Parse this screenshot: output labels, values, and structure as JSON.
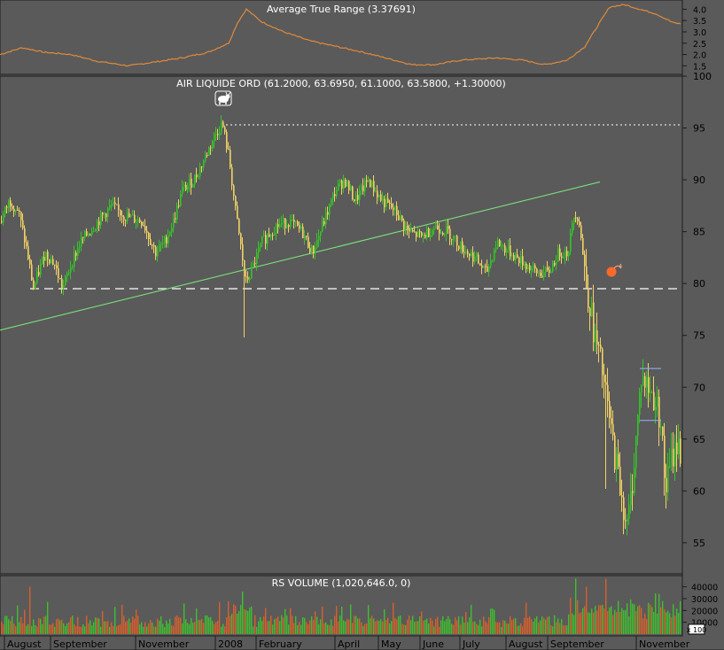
{
  "colors": {
    "background": "#5a5a5a",
    "atr_line": "#e08a3c",
    "up_bar": "#36c22a",
    "down_bar": "#f2d264",
    "trendline": "#7be07b",
    "support_line": "#ffffff",
    "vol_up": "#3fbf2f",
    "vol_down": "#d8602a",
    "bomb": "#ff6a2a"
  },
  "chart_data": [
    {
      "panel": "atr",
      "type": "line",
      "title": "Average True Range (3.37691)",
      "ylim": [
        1.2,
        4.25
      ],
      "yticks": [
        "1.5",
        "2.0",
        "2.5",
        "3.0",
        "3.5",
        "4.0"
      ],
      "knots": [
        [
          0,
          2.0
        ],
        [
          25,
          2.3
        ],
        [
          50,
          2.1
        ],
        [
          80,
          2.0
        ],
        [
          110,
          1.7
        ],
        [
          145,
          1.5
        ],
        [
          180,
          1.7
        ],
        [
          205,
          1.85
        ],
        [
          235,
          2.1
        ],
        [
          258,
          2.5
        ],
        [
          268,
          3.4
        ],
        [
          278,
          4.0
        ],
        [
          295,
          3.45
        ],
        [
          320,
          3.0
        ],
        [
          350,
          2.6
        ],
        [
          380,
          2.35
        ],
        [
          410,
          2.1
        ],
        [
          440,
          1.8
        ],
        [
          465,
          1.55
        ],
        [
          490,
          1.55
        ],
        [
          520,
          1.75
        ],
        [
          560,
          1.85
        ],
        [
          590,
          1.75
        ],
        [
          615,
          1.55
        ],
        [
          640,
          1.75
        ],
        [
          660,
          2.35
        ],
        [
          675,
          3.3
        ],
        [
          688,
          4.1
        ],
        [
          705,
          4.2
        ],
        [
          722,
          4.0
        ],
        [
          740,
          3.8
        ],
        [
          760,
          3.4
        ],
        [
          768,
          3.35
        ]
      ]
    },
    {
      "panel": "price",
      "type": "candlestick",
      "title": "AIR LIQUIDE ORD (61.2000, 63.6950, 61.1000, 63.5800, +1.30000)",
      "ylim": [
        52,
        100
      ],
      "yticks": [
        "55",
        "60",
        "65",
        "70",
        "75",
        "80",
        "85",
        "90",
        "95",
        "100"
      ],
      "support_level": 79.5,
      "resistance_level": 95.3,
      "trendline": [
        [
          0,
          75.5
        ],
        [
          677,
          89.8
        ]
      ],
      "box_levels": [
        71.8,
        66.8
      ],
      "knots": [
        [
          0,
          86
        ],
        [
          10,
          88
        ],
        [
          20,
          87
        ],
        [
          30,
          83
        ],
        [
          37,
          79.5
        ],
        [
          50,
          83
        ],
        [
          60,
          82
        ],
        [
          70,
          79.5
        ],
        [
          80,
          82
        ],
        [
          90,
          84
        ],
        [
          110,
          86
        ],
        [
          125,
          87.5
        ],
        [
          140,
          86.5
        ],
        [
          160,
          86
        ],
        [
          175,
          83
        ],
        [
          185,
          84
        ],
        [
          195,
          86
        ],
        [
          205,
          89
        ],
        [
          218,
          90
        ],
        [
          230,
          92
        ],
        [
          240,
          94
        ],
        [
          250,
          95.5
        ],
        [
          258,
          92
        ],
        [
          265,
          87
        ],
        [
          272,
          83
        ],
        [
          276,
          80
        ],
        [
          282,
          81
        ],
        [
          295,
          84
        ],
        [
          310,
          85.5
        ],
        [
          325,
          86
        ],
        [
          340,
          85
        ],
        [
          352,
          83
        ],
        [
          365,
          86
        ],
        [
          378,
          89
        ],
        [
          388,
          90
        ],
        [
          400,
          88
        ],
        [
          415,
          90
        ],
        [
          430,
          88
        ],
        [
          445,
          87
        ],
        [
          460,
          85
        ],
        [
          475,
          84.5
        ],
        [
          490,
          85.5
        ],
        [
          505,
          85
        ],
        [
          520,
          83.5
        ],
        [
          535,
          82.5
        ],
        [
          548,
          81
        ],
        [
          560,
          84
        ],
        [
          575,
          83
        ],
        [
          590,
          82
        ],
        [
          605,
          81
        ],
        [
          618,
          81
        ],
        [
          630,
          83
        ],
        [
          640,
          83
        ],
        [
          648,
          87
        ],
        [
          653,
          86
        ],
        [
          660,
          80.5
        ],
        [
          665,
          78
        ],
        [
          670,
          75
        ],
        [
          678,
          72
        ],
        [
          685,
          68
        ],
        [
          692,
          64
        ],
        [
          700,
          60
        ],
        [
          707,
          56.5
        ],
        [
          712,
          60
        ],
        [
          717,
          65
        ],
        [
          723,
          71
        ],
        [
          730,
          70
        ],
        [
          737,
          69
        ],
        [
          745,
          67
        ],
        [
          750,
          60
        ],
        [
          757,
          63
        ],
        [
          763,
          64.5
        ],
        [
          768,
          63.6
        ]
      ]
    },
    {
      "panel": "volume",
      "type": "bar",
      "title": "RS VOLUME (1,020,646.0, 0)",
      "ylim": [
        0,
        48000
      ],
      "yticks": [
        "10000",
        "20000",
        "30000",
        "40000"
      ],
      "unit_badge": "x 100"
    }
  ],
  "x_axis": {
    "labels": [
      {
        "text": "August",
        "x": 8
      },
      {
        "text": "September",
        "x": 60
      },
      {
        "text": "November",
        "x": 156
      },
      {
        "text": "2008",
        "x": 246
      },
      {
        "text": "February",
        "x": 292
      },
      {
        "text": "April",
        "x": 381
      },
      {
        "text": "May",
        "x": 430
      },
      {
        "text": "June",
        "x": 477
      },
      {
        "text": "July",
        "x": 522
      },
      {
        "text": "August",
        "x": 574
      },
      {
        "text": "September",
        "x": 621
      },
      {
        "text": "November",
        "x": 721
      }
    ]
  },
  "icons": [
    "bull-icon",
    "bomb-icon"
  ]
}
